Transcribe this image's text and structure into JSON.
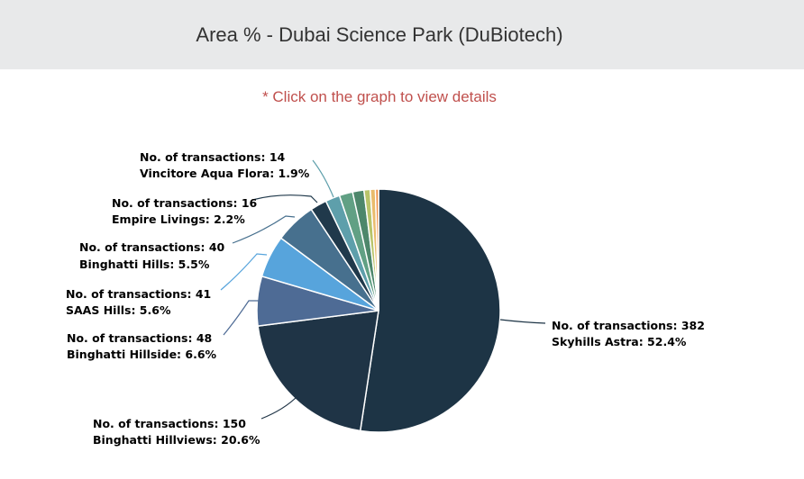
{
  "header": {
    "title": "Area % - Dubai Science Park (DuBiotech)"
  },
  "hint": "* Click on the graph to view details",
  "chart_data": {
    "type": "pie",
    "title": "Area % - Dubai Science Park (DuBiotech)",
    "subtitle": "* Click on the graph to view details",
    "label_format": "No. of transactions: {count} / {name}: {percent}%",
    "slices": [
      {
        "name": "Skyhills Astra",
        "count": 382,
        "percent": 52.4,
        "color": "#1d3445"
      },
      {
        "name": "Binghatti Hillviews",
        "count": 150,
        "percent": 20.6,
        "color": "#1f3446"
      },
      {
        "name": "Binghatti Hillside",
        "count": 48,
        "percent": 6.6,
        "color": "#4e6b95"
      },
      {
        "name": "SAAS Hills",
        "count": 41,
        "percent": 5.6,
        "color": "#57a4dc"
      },
      {
        "name": "Binghatti Hills",
        "count": 40,
        "percent": 5.5,
        "color": "#47708e"
      },
      {
        "name": "Empire Livings",
        "count": 16,
        "percent": 2.2,
        "color": "#20394b"
      },
      {
        "name": "Vincitore Aqua Flora",
        "count": 14,
        "percent": 1.9,
        "color": "#5e9fab"
      },
      {
        "name": "",
        "count": 13,
        "percent": 1.8,
        "color": "#61a084"
      },
      {
        "name": "",
        "count": 11,
        "percent": 1.5,
        "color": "#4d876b"
      },
      {
        "name": "",
        "count": 6,
        "percent": 0.8,
        "color": "#b8c46a"
      },
      {
        "name": "",
        "count": 5,
        "percent": 0.7,
        "color": "#e9bb6c"
      },
      {
        "name": "",
        "count": 3,
        "percent": 0.4,
        "color": "#ee8f45"
      }
    ],
    "labels": [
      {
        "line1": "No. of transactions: 382",
        "line2": "Skyhills Astra: 52.4%"
      },
      {
        "line1": "No. of transactions: 150",
        "line2": "Binghatti Hillviews: 20.6%"
      },
      {
        "line1": "No. of transactions: 48",
        "line2": "Binghatti Hillside: 6.6%"
      },
      {
        "line1": "No. of transactions: 41",
        "line2": "SAAS Hills: 5.6%"
      },
      {
        "line1": "No. of transactions: 40",
        "line2": "Binghatti Hills: 5.5%"
      },
      {
        "line1": "No. of transactions: 16",
        "line2": "Empire Livings: 2.2%"
      },
      {
        "line1": "No. of transactions: 14",
        "line2": "Vincitore Aqua Flora: 1.9%"
      }
    ],
    "legend": "none"
  }
}
